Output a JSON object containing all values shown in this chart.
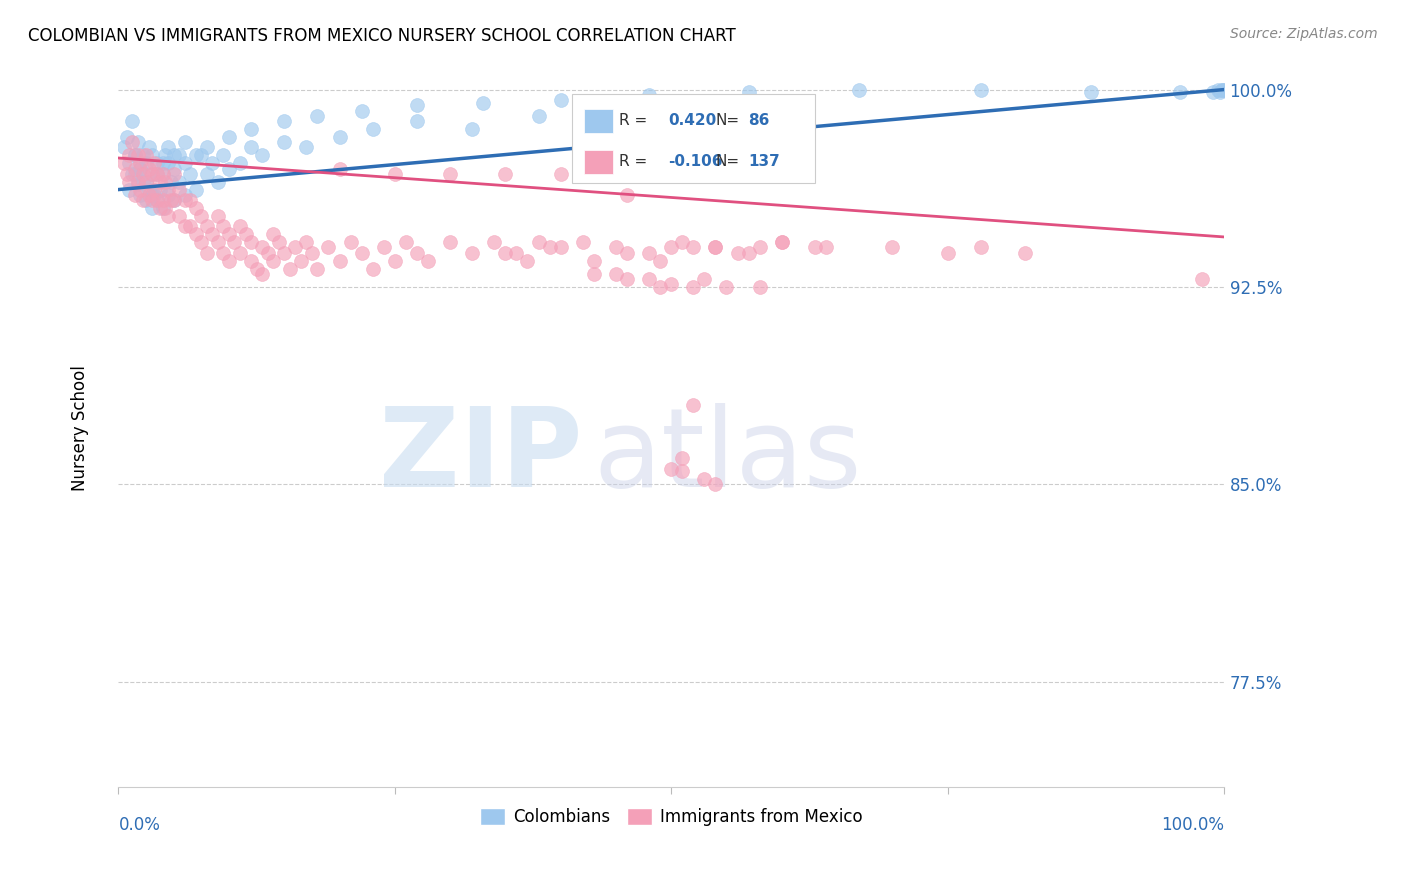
{
  "title": "COLOMBIAN VS IMMIGRANTS FROM MEXICO NURSERY SCHOOL CORRELATION CHART",
  "source": "Source: ZipAtlas.com",
  "ylabel": "Nursery School",
  "ytick_values": [
    1.0,
    0.925,
    0.85,
    0.775
  ],
  "legend_label1": "Colombians",
  "legend_label2": "Immigrants from Mexico",
  "r1": 0.42,
  "n1": 86,
  "r2": -0.106,
  "n2": 137,
  "color_blue": "#9EC8EE",
  "color_pink": "#F4A0B8",
  "color_blue_line": "#2E6DB4",
  "color_pink_line": "#E05080",
  "color_blue_text": "#2E6DB4",
  "blue_x": [
    0.005,
    0.008,
    0.01,
    0.012,
    0.015,
    0.015,
    0.018,
    0.018,
    0.02,
    0.02,
    0.022,
    0.022,
    0.025,
    0.025,
    0.028,
    0.028,
    0.03,
    0.03,
    0.03,
    0.032,
    0.035,
    0.035,
    0.038,
    0.04,
    0.04,
    0.042,
    0.045,
    0.045,
    0.048,
    0.05,
    0.05,
    0.055,
    0.055,
    0.06,
    0.06,
    0.065,
    0.07,
    0.075,
    0.08,
    0.085,
    0.09,
    0.095,
    0.1,
    0.11,
    0.12,
    0.13,
    0.15,
    0.17,
    0.2,
    0.23,
    0.27,
    0.32,
    0.38,
    0.01,
    0.012,
    0.015,
    0.02,
    0.025,
    0.03,
    0.035,
    0.04,
    0.045,
    0.05,
    0.06,
    0.07,
    0.08,
    0.1,
    0.12,
    0.15,
    0.18,
    0.22,
    0.27,
    0.33,
    0.4,
    0.48,
    0.57,
    0.67,
    0.78,
    0.88,
    0.96,
    0.99,
    0.995,
    0.998,
    1.0,
    0.998,
    0.996
  ],
  "blue_y": [
    0.978,
    0.982,
    0.972,
    0.988,
    0.968,
    0.975,
    0.964,
    0.98,
    0.96,
    0.97,
    0.965,
    0.975,
    0.958,
    0.972,
    0.962,
    0.978,
    0.955,
    0.968,
    0.975,
    0.96,
    0.958,
    0.972,
    0.962,
    0.955,
    0.968,
    0.975,
    0.96,
    0.972,
    0.965,
    0.958,
    0.97,
    0.965,
    0.975,
    0.96,
    0.972,
    0.968,
    0.962,
    0.975,
    0.968,
    0.972,
    0.965,
    0.975,
    0.97,
    0.972,
    0.978,
    0.975,
    0.98,
    0.978,
    0.982,
    0.985,
    0.988,
    0.985,
    0.99,
    0.962,
    0.968,
    0.975,
    0.97,
    0.965,
    0.96,
    0.968,
    0.972,
    0.978,
    0.975,
    0.98,
    0.975,
    0.978,
    0.982,
    0.985,
    0.988,
    0.99,
    0.992,
    0.994,
    0.995,
    0.996,
    0.998,
    0.999,
    1.0,
    1.0,
    0.999,
    0.999,
    0.999,
    1.0,
    1.0,
    1.0,
    1.0,
    0.999
  ],
  "pink_x": [
    0.005,
    0.008,
    0.01,
    0.01,
    0.012,
    0.015,
    0.015,
    0.018,
    0.018,
    0.02,
    0.02,
    0.022,
    0.022,
    0.025,
    0.025,
    0.028,
    0.028,
    0.03,
    0.03,
    0.032,
    0.032,
    0.035,
    0.035,
    0.038,
    0.038,
    0.04,
    0.04,
    0.042,
    0.042,
    0.045,
    0.045,
    0.048,
    0.05,
    0.05,
    0.055,
    0.055,
    0.06,
    0.06,
    0.065,
    0.065,
    0.07,
    0.07,
    0.075,
    0.075,
    0.08,
    0.08,
    0.085,
    0.09,
    0.09,
    0.095,
    0.095,
    0.1,
    0.1,
    0.105,
    0.11,
    0.11,
    0.115,
    0.12,
    0.12,
    0.125,
    0.13,
    0.13,
    0.135,
    0.14,
    0.14,
    0.145,
    0.15,
    0.155,
    0.16,
    0.165,
    0.17,
    0.175,
    0.18,
    0.19,
    0.2,
    0.21,
    0.22,
    0.23,
    0.24,
    0.25,
    0.26,
    0.27,
    0.28,
    0.3,
    0.32,
    0.34,
    0.36,
    0.38,
    0.4,
    0.42,
    0.45,
    0.48,
    0.51,
    0.54,
    0.57,
    0.6,
    0.35,
    0.37,
    0.39,
    0.43,
    0.46,
    0.49,
    0.52,
    0.56,
    0.6,
    0.64,
    0.45,
    0.48,
    0.5,
    0.53,
    0.43,
    0.46,
    0.5,
    0.54,
    0.58,
    0.63,
    0.49,
    0.52,
    0.55,
    0.58,
    0.51,
    0.54,
    0.2,
    0.25,
    0.3,
    0.35,
    0.4,
    0.46,
    0.5,
    0.51,
    0.52,
    0.53,
    0.7,
    0.75,
    0.78,
    0.82,
    0.98
  ],
  "pink_y": [
    0.972,
    0.968,
    0.975,
    0.965,
    0.98,
    0.97,
    0.96,
    0.975,
    0.965,
    0.972,
    0.962,
    0.968,
    0.958,
    0.975,
    0.965,
    0.97,
    0.96,
    0.968,
    0.958,
    0.972,
    0.962,
    0.968,
    0.958,
    0.965,
    0.955,
    0.968,
    0.958,
    0.965,
    0.955,
    0.962,
    0.952,
    0.958,
    0.968,
    0.958,
    0.962,
    0.952,
    0.958,
    0.948,
    0.958,
    0.948,
    0.955,
    0.945,
    0.952,
    0.942,
    0.948,
    0.938,
    0.945,
    0.952,
    0.942,
    0.948,
    0.938,
    0.945,
    0.935,
    0.942,
    0.948,
    0.938,
    0.945,
    0.935,
    0.942,
    0.932,
    0.94,
    0.93,
    0.938,
    0.945,
    0.935,
    0.942,
    0.938,
    0.932,
    0.94,
    0.935,
    0.942,
    0.938,
    0.932,
    0.94,
    0.935,
    0.942,
    0.938,
    0.932,
    0.94,
    0.935,
    0.942,
    0.938,
    0.935,
    0.942,
    0.938,
    0.942,
    0.938,
    0.942,
    0.94,
    0.942,
    0.94,
    0.938,
    0.942,
    0.94,
    0.938,
    0.942,
    0.938,
    0.935,
    0.94,
    0.935,
    0.938,
    0.935,
    0.94,
    0.938,
    0.942,
    0.94,
    0.93,
    0.928,
    0.926,
    0.928,
    0.93,
    0.928,
    0.94,
    0.94,
    0.94,
    0.94,
    0.925,
    0.925,
    0.925,
    0.925,
    0.855,
    0.85,
    0.97,
    0.968,
    0.968,
    0.968,
    0.968,
    0.96,
    0.856,
    0.86,
    0.88,
    0.852,
    0.94,
    0.938,
    0.94,
    0.938,
    0.928
  ]
}
